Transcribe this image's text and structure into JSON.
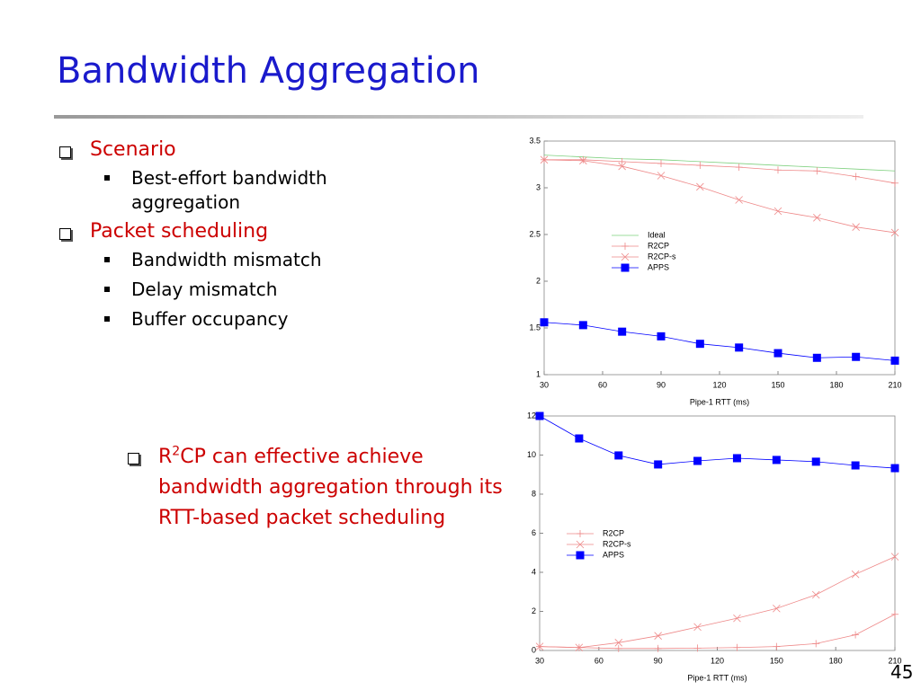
{
  "slide": {
    "title": "Bandwidth Aggregation",
    "bullets": [
      {
        "text": "Scenario",
        "sub": [
          "Best-effort bandwidth aggregation"
        ]
      },
      {
        "text": "Packet scheduling",
        "sub": [
          "Bandwidth mismatch",
          "Delay mismatch",
          "Buffer occupancy"
        ]
      }
    ],
    "conclusion": {
      "prefix": "R",
      "superscript": "2",
      "text": "CP can effective achieve bandwidth aggregation through its RTT-based packet scheduling"
    },
    "page_number": "45"
  },
  "chart_data": [
    {
      "type": "line",
      "x_label": "Pipe-1 RTT (ms)",
      "x": [
        30,
        50,
        70,
        90,
        110,
        130,
        150,
        170,
        190,
        210
      ],
      "xlim": [
        30,
        210
      ],
      "xticks": [
        30,
        60,
        90,
        120,
        150,
        180,
        210
      ],
      "ylim": [
        1,
        3.5
      ],
      "yticks": [
        1,
        1.5,
        2,
        2.5,
        3,
        3.5
      ],
      "grid": false,
      "legend": "center",
      "series": [
        {
          "name": "Ideal",
          "color": "#7ed07e",
          "marker": "none",
          "values": [
            3.35,
            3.33,
            3.31,
            3.3,
            3.28,
            3.26,
            3.24,
            3.22,
            3.2,
            3.18
          ]
        },
        {
          "name": "R2CP",
          "color": "#ee8888",
          "marker": "plus",
          "values": [
            3.3,
            3.3,
            3.28,
            3.26,
            3.24,
            3.22,
            3.19,
            3.18,
            3.12,
            3.05
          ]
        },
        {
          "name": "R2CP-s",
          "color": "#ee8888",
          "marker": "cross",
          "values": [
            3.3,
            3.29,
            3.23,
            3.13,
            3.01,
            2.87,
            2.75,
            2.68,
            2.58,
            2.52
          ]
        },
        {
          "name": "APPS",
          "color": "#0000ff",
          "marker": "square",
          "values": [
            1.56,
            1.53,
            1.46,
            1.41,
            1.33,
            1.29,
            1.23,
            1.18,
            1.19,
            1.15
          ]
        }
      ]
    },
    {
      "type": "line",
      "x_label": "Pipe-1 RTT (ms)",
      "x": [
        30,
        50,
        70,
        90,
        110,
        130,
        150,
        170,
        190,
        210
      ],
      "xlim": [
        30,
        210
      ],
      "xticks": [
        30,
        60,
        90,
        120,
        150,
        180,
        210
      ],
      "ylim": [
        0,
        12
      ],
      "yticks": [
        0,
        2,
        4,
        6,
        8,
        10,
        12
      ],
      "grid": false,
      "legend": "center-left",
      "series": [
        {
          "name": "R2CP",
          "color": "#ee8888",
          "marker": "plus",
          "values": [
            0.2,
            0.15,
            0.1,
            0.1,
            0.12,
            0.15,
            0.2,
            0.35,
            0.8,
            1.85
          ]
        },
        {
          "name": "R2CP-s",
          "color": "#ee8888",
          "marker": "cross",
          "values": [
            0.2,
            0.15,
            0.4,
            0.75,
            1.2,
            1.65,
            2.15,
            2.85,
            3.9,
            4.8
          ]
        },
        {
          "name": "APPS",
          "color": "#0000ff",
          "marker": "square",
          "values": [
            12,
            10.85,
            9.98,
            9.52,
            9.7,
            9.84,
            9.75,
            9.66,
            9.47,
            9.33
          ]
        }
      ]
    }
  ]
}
